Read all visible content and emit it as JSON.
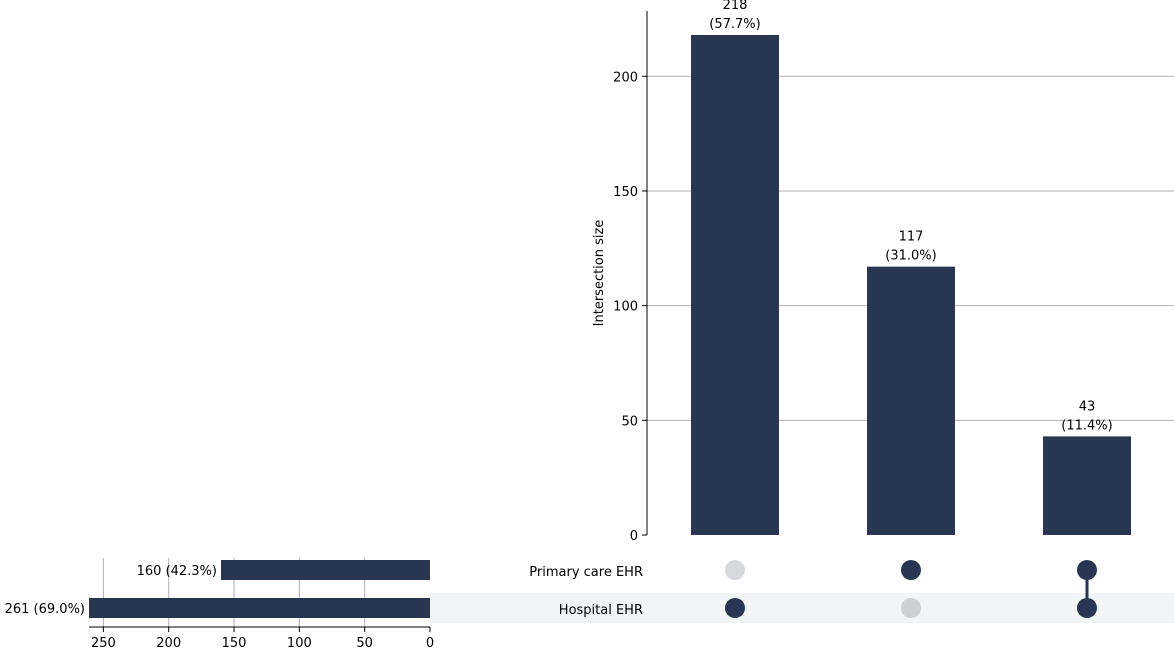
{
  "chart_data": {
    "type": "bar",
    "kind": "upset",
    "colors": {
      "bar": "#283651",
      "dot_active": "#283651",
      "dot_inactive_primary": "#d5d8dc",
      "dot_inactive_hospital": "#cccfd6",
      "grid": "#b0b0b0",
      "shade": "#f3f4f6"
    },
    "intersections": {
      "ylabel": "Intersection size",
      "ylim": [
        0,
        229
      ],
      "yticks": [
        "0",
        "50",
        "100",
        "150",
        "200"
      ],
      "grid": true,
      "bars": [
        {
          "value": 218,
          "label": "218",
          "pct": "(57.7%)",
          "members": [
            false,
            true
          ]
        },
        {
          "value": 117,
          "label": "117",
          "pct": "(31.0%)",
          "members": [
            true,
            false
          ]
        },
        {
          "value": 43,
          "label": "43",
          "pct": "(11.4%)",
          "members": [
            true,
            true
          ]
        }
      ]
    },
    "sets": [
      {
        "name": "Primary care EHR",
        "value": 160,
        "label": "160 (42.3%)"
      },
      {
        "name": "Hospital EHR",
        "value": 261,
        "label": "261 (69.0%)"
      }
    ],
    "set_size_axis": {
      "ticks": [
        "250",
        "200",
        "150",
        "100",
        "50",
        "0"
      ],
      "xlim": [
        0,
        261
      ],
      "grid": true
    }
  }
}
